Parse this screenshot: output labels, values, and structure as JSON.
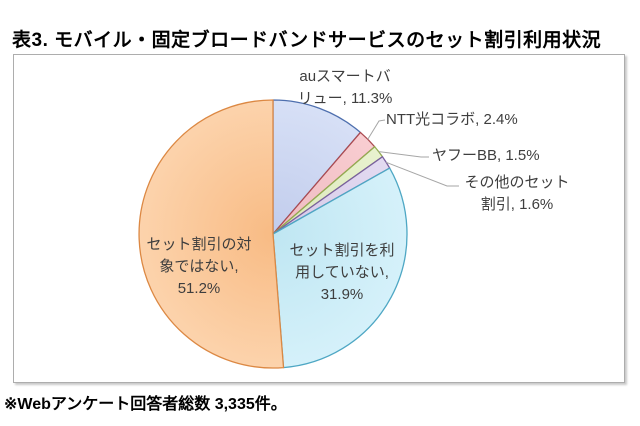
{
  "page": {
    "title": "表3. モバイル・固定ブロードバンドサービスのセット割引利用状況",
    "footnote": "※Webアンケート回答者総数 3,335件。"
  },
  "chart_data": {
    "type": "pie",
    "title": "表3. モバイル・固定ブロードバンドサービスのセット割引利用状況",
    "unit": "%",
    "respondent_total": "3,335",
    "start_angle_deg": 0,
    "direction": "clockwise",
    "legend_position": "none",
    "slices": [
      {
        "label": "auスマートバリュー",
        "value": 11.3,
        "display": "auスマートバリュー, 11.3%",
        "label_lines": [
          "auスマートバ",
          "リュー, 11.3%"
        ],
        "fill_inner": "#c1ccec",
        "fill_outer": "#d7e0f6",
        "stroke": "#4e6fae"
      },
      {
        "label": "NTT光コラボ",
        "value": 2.4,
        "display": "NTT光コラボ, 2.4%",
        "label_lines": [
          "NTT光コラボ, 2.4%"
        ],
        "fill_inner": "#efbac0",
        "fill_outer": "#f8cdd1",
        "stroke": "#ab4a50"
      },
      {
        "label": "ヤフーBB",
        "value": 1.5,
        "display": "ヤフーBB, 1.5%",
        "label_lines": [
          "ヤフーBB, 1.5%"
        ],
        "fill_inner": "#dbe8ba",
        "fill_outer": "#e9f2cf",
        "stroke": "#93ac51"
      },
      {
        "label": "その他のセット割引",
        "value": 1.6,
        "display": "その他のセット割引, 1.6%",
        "label_lines": [
          "その他のセット",
          "割引, 1.6%"
        ],
        "fill_inner": "#d5c9e7",
        "fill_outer": "#e3dbf1",
        "stroke": "#79609f"
      },
      {
        "label": "セット割引を利用していない",
        "value": 31.9,
        "display": "セット割引を利用していない, 31.9%",
        "label_lines": [
          "セット割引を利",
          "用していない,",
          "31.9%"
        ],
        "fill_inner": "#bfe6f2",
        "fill_outer": "#d5f1fa",
        "stroke": "#4ea7c4"
      },
      {
        "label": "セット割引の対象ではない",
        "value": 51.2,
        "display": "セット割引の対象ではない, 51.2%",
        "label_lines": [
          "セット割引の対",
          "象ではない,",
          "51.2%"
        ],
        "fill_inner": "#f8bb84",
        "fill_outer": "#fcd3ac",
        "stroke": "#dc8843"
      }
    ]
  },
  "colors": {
    "leader_line": "#a6a6a6",
    "label_text": "#3e3e3e",
    "frame_border": "#adadad",
    "title_text": "#000000"
  }
}
